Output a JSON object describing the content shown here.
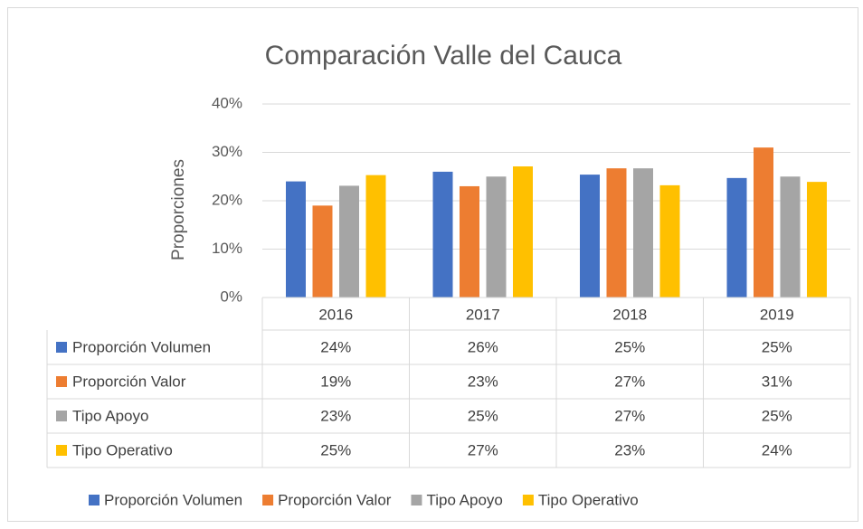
{
  "chart_data": {
    "type": "bar",
    "title": "Comparación Valle del Cauca",
    "y_label": "Proporciones",
    "categories": [
      "2016",
      "2017",
      "2018",
      "2019"
    ],
    "series": [
      {
        "name": "Proporción Volumen",
        "color": "#4472c4",
        "values": [
          24.0,
          26.0,
          25.4,
          24.7
        ],
        "value_labels": [
          "24%",
          "26%",
          "25%",
          "25%"
        ]
      },
      {
        "name": "Proporción Valor",
        "color": "#ed7d31",
        "values": [
          19.0,
          23.0,
          26.7,
          31.0
        ],
        "value_labels": [
          "19%",
          "23%",
          "27%",
          "31%"
        ]
      },
      {
        "name": "Tipo Apoyo",
        "color": "#a5a5a5",
        "values": [
          23.1,
          25.0,
          26.7,
          25.0
        ],
        "value_labels": [
          "23%",
          "25%",
          "27%",
          "25%"
        ]
      },
      {
        "name": "Tipo Operativo",
        "color": "#ffc000",
        "values": [
          25.3,
          27.1,
          23.2,
          23.9
        ],
        "value_labels": [
          "25%",
          "27%",
          "23%",
          "24%"
        ]
      }
    ],
    "ylim": [
      0,
      40
    ],
    "yticks": [
      {
        "value": 0,
        "label": "0%"
      },
      {
        "value": 10,
        "label": "10%"
      },
      {
        "value": 20,
        "label": "20%"
      },
      {
        "value": 30,
        "label": "30%"
      },
      {
        "value": 40,
        "label": "40%"
      }
    ],
    "grid": true,
    "legend": "bottom"
  }
}
